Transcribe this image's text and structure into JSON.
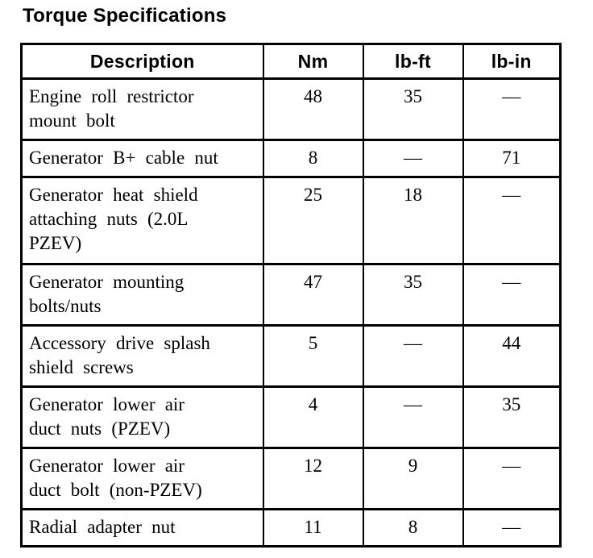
{
  "title": "Torque Specifications",
  "colors": {
    "background": "#ffffff",
    "text": "#000000",
    "border": "#000000"
  },
  "table": {
    "headers": {
      "description": "Description",
      "nm": "Nm",
      "lb_ft": "lb-ft",
      "lb_in": "lb-in"
    },
    "rows": [
      {
        "description": "Engine roll restrictor\nmount bolt",
        "nm": "48",
        "lb_ft": "35",
        "lb_in": "—"
      },
      {
        "description": "Generator B+ cable nut",
        "nm": "8",
        "lb_ft": "—",
        "lb_in": "71"
      },
      {
        "description": "Generator heat shield\nattaching nuts (2.0L\nPZEV)",
        "nm": "25",
        "lb_ft": "18",
        "lb_in": "—"
      },
      {
        "description": "Generator mounting\nbolts/nuts",
        "nm": "47",
        "lb_ft": "35",
        "lb_in": "—"
      },
      {
        "description": "Accessory drive splash\nshield screws",
        "nm": "5",
        "lb_ft": "—",
        "lb_in": "44"
      },
      {
        "description": "Generator lower air\nduct nuts (PZEV)",
        "nm": "4",
        "lb_ft": "—",
        "lb_in": "35"
      },
      {
        "description": "Generator lower air\nduct bolt (non-PZEV)",
        "nm": "12",
        "lb_ft": "9",
        "lb_in": "—"
      },
      {
        "description": "Radial adapter nut",
        "nm": "11",
        "lb_ft": "8",
        "lb_in": "—"
      }
    ]
  }
}
